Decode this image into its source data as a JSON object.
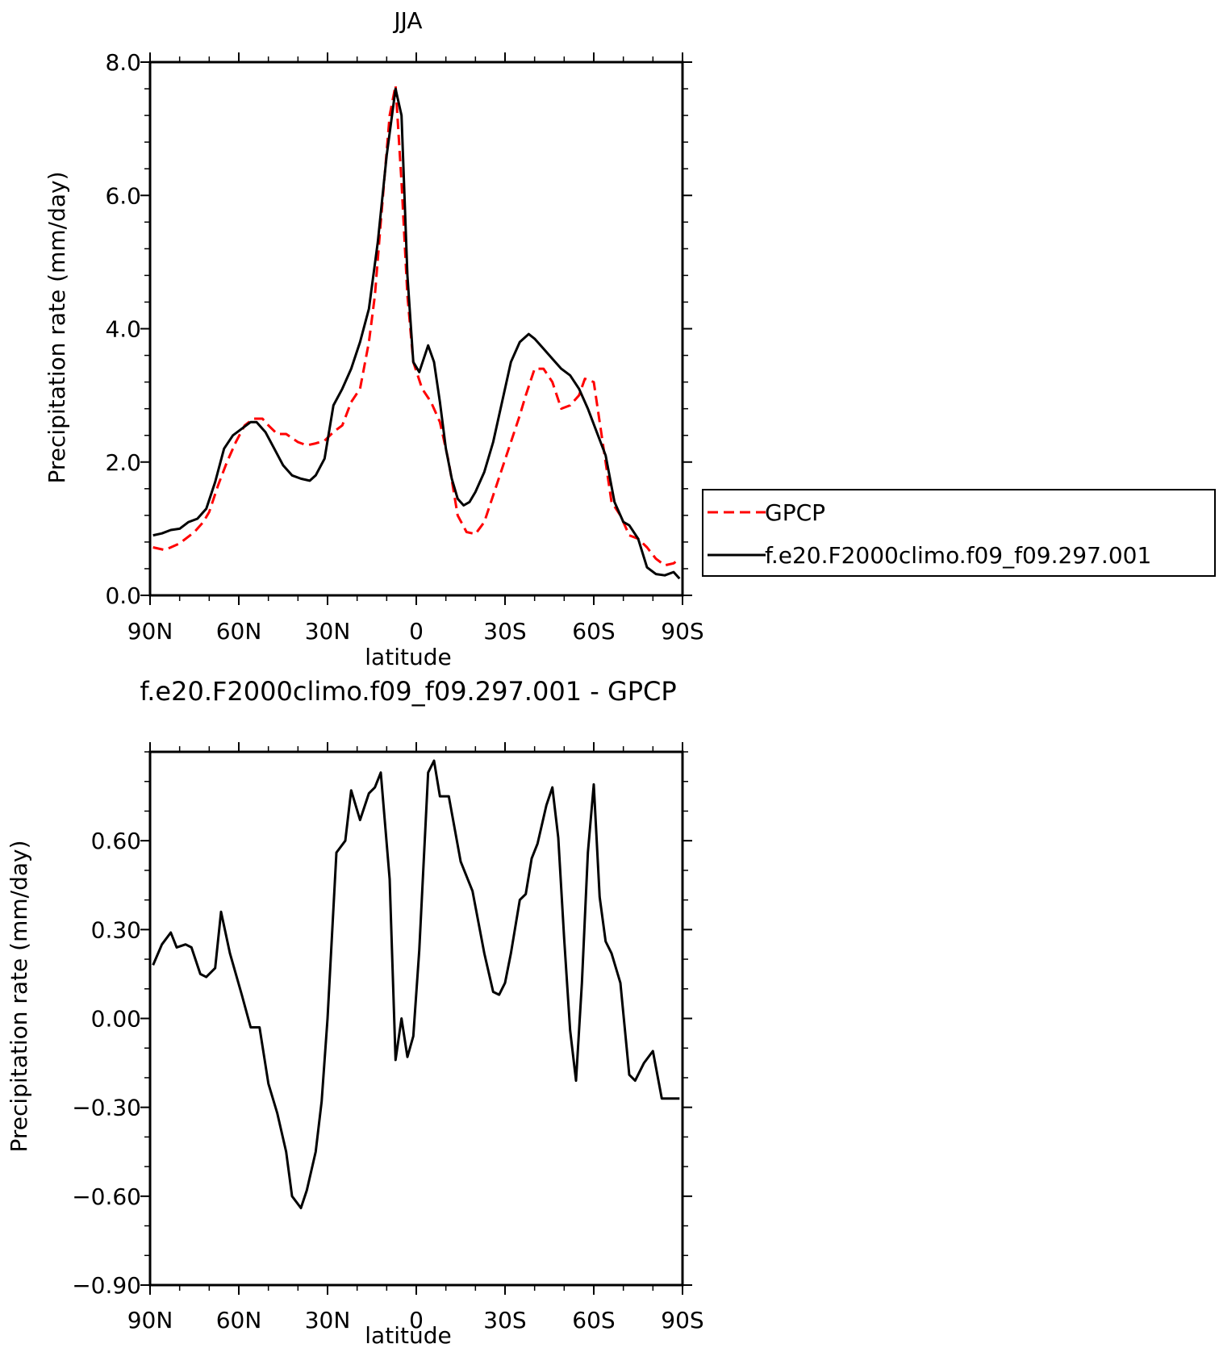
{
  "chart_data": [
    {
      "type": "line",
      "title": "JJA",
      "xlabel": "latitude",
      "ylabel": "Precipitation rate (mm/day)",
      "xlim": [
        90,
        -90
      ],
      "ylim": [
        0,
        8
      ],
      "x_ticks": [
        90,
        60,
        30,
        0,
        -30,
        -60,
        -90
      ],
      "x_tick_labels": [
        "90N",
        "60N",
        "30N",
        "0",
        "30S",
        "60S",
        "90S"
      ],
      "y_ticks": [
        0,
        2,
        4,
        6,
        8
      ],
      "y_tick_labels": [
        "0.0",
        "2.0",
        "4.0",
        "6.0",
        "8.0"
      ],
      "legend_position": "right",
      "series": [
        {
          "name": "GPCP",
          "color": "#ff0000",
          "dash": "dashed",
          "x": [
            89,
            85,
            80,
            75,
            72,
            70,
            67,
            64,
            61,
            58,
            55,
            52,
            50,
            47,
            44,
            40,
            37,
            34,
            31,
            28,
            25,
            22,
            19,
            16,
            14,
            12,
            9,
            7,
            5,
            3,
            1,
            -2,
            -5,
            -8,
            -11,
            -14,
            -17,
            -20,
            -23,
            -26,
            -29,
            -32,
            -35,
            -37,
            -40,
            -43,
            -46,
            -49,
            -52,
            -55,
            -57,
            -60,
            -63,
            -66,
            -69,
            -72,
            -75,
            -78,
            -81,
            -84,
            -87,
            -89
          ],
          "y": [
            0.72,
            0.68,
            0.78,
            0.95,
            1.1,
            1.25,
            1.65,
            2.0,
            2.3,
            2.55,
            2.65,
            2.65,
            2.55,
            2.42,
            2.42,
            2.3,
            2.25,
            2.28,
            2.32,
            2.45,
            2.55,
            2.9,
            3.1,
            3.8,
            4.5,
            5.6,
            7.2,
            7.65,
            6.2,
            4.5,
            3.5,
            3.1,
            2.9,
            2.6,
            2.0,
            1.2,
            0.95,
            0.92,
            1.1,
            1.5,
            1.9,
            2.3,
            2.7,
            3.0,
            3.4,
            3.4,
            3.2,
            2.8,
            2.85,
            3.0,
            3.25,
            3.2,
            2.3,
            1.4,
            1.2,
            0.9,
            0.85,
            0.72,
            0.55,
            0.45,
            0.48,
            0.55
          ]
        },
        {
          "name": "f.e20.F2000climo.f09_f09.297.001",
          "color": "#000000",
          "dash": "solid",
          "x": [
            89,
            86,
            83,
            80,
            77,
            74,
            71,
            68,
            65,
            62,
            59,
            56,
            54,
            51,
            48,
            45,
            42,
            39,
            36,
            34,
            31,
            28,
            25,
            22,
            19,
            16,
            13,
            10,
            7,
            5,
            3,
            1,
            -1,
            -4,
            -6,
            -8,
            -10,
            -12,
            -14,
            -16,
            -18,
            -20,
            -23,
            -26,
            -29,
            -32,
            -35,
            -38,
            -40,
            -43,
            -46,
            -49,
            -52,
            -55,
            -58,
            -61,
            -64,
            -67,
            -70,
            -72,
            -75,
            -78,
            -81,
            -84,
            -87,
            -89
          ],
          "y": [
            0.9,
            0.93,
            0.98,
            1.0,
            1.1,
            1.15,
            1.3,
            1.7,
            2.2,
            2.4,
            2.5,
            2.6,
            2.6,
            2.45,
            2.2,
            1.95,
            1.8,
            1.75,
            1.72,
            1.8,
            2.05,
            2.85,
            3.1,
            3.4,
            3.8,
            4.3,
            5.3,
            6.6,
            7.6,
            7.2,
            4.8,
            3.5,
            3.35,
            3.75,
            3.5,
            2.9,
            2.2,
            1.75,
            1.45,
            1.35,
            1.4,
            1.55,
            1.85,
            2.3,
            2.9,
            3.5,
            3.8,
            3.92,
            3.85,
            3.7,
            3.55,
            3.4,
            3.3,
            3.1,
            2.8,
            2.45,
            2.1,
            1.4,
            1.1,
            1.05,
            0.85,
            0.42,
            0.32,
            0.3,
            0.35,
            0.25
          ]
        }
      ]
    },
    {
      "type": "line",
      "title": "f.e20.F2000climo.f09_f09.297.001 - GPCP",
      "xlabel": "latitude",
      "ylabel": "Precipitation rate (mm/day)",
      "xlim": [
        90,
        -90
      ],
      "ylim": [
        -0.9,
        0.9
      ],
      "x_ticks": [
        90,
        60,
        30,
        0,
        -30,
        -60,
        -90
      ],
      "x_tick_labels": [
        "90N",
        "60N",
        "30N",
        "0",
        "30S",
        "60S",
        "90S"
      ],
      "y_ticks": [
        -0.9,
        -0.6,
        -0.3,
        0.0,
        0.3,
        0.6
      ],
      "y_tick_labels": [
        "-0.90",
        "-0.60",
        "-0.30",
        "0.00",
        "0.30",
        "0.60"
      ],
      "series": [
        {
          "color": "#000000",
          "dash": "solid",
          "x": [
            89,
            86,
            83,
            81,
            78,
            76,
            73,
            71,
            68,
            66,
            63,
            59,
            56,
            53,
            50,
            47,
            44,
            42,
            39,
            37,
            34,
            32,
            30,
            27,
            24,
            22,
            19,
            16,
            14,
            12,
            9,
            7,
            5,
            3,
            1,
            -1,
            -4,
            -6,
            -8,
            -11,
            -15,
            -19,
            -23,
            -26,
            -28,
            -30,
            -32,
            -35,
            -37,
            -39,
            -41,
            -44,
            -46,
            -48,
            -50,
            -52,
            -54,
            -56,
            -58,
            -60,
            -62,
            -64,
            -66,
            -69,
            -72,
            -74,
            -77,
            -80,
            -83,
            -86,
            -89
          ],
          "y": [
            0.18,
            0.25,
            0.29,
            0.24,
            0.25,
            0.24,
            0.15,
            0.14,
            0.17,
            0.36,
            0.22,
            0.08,
            -0.03,
            -0.03,
            -0.22,
            -0.32,
            -0.45,
            -0.6,
            -0.64,
            -0.58,
            -0.45,
            -0.28,
            0.0,
            0.56,
            0.6,
            0.77,
            0.67,
            0.76,
            0.78,
            0.83,
            0.47,
            -0.14,
            0.0,
            -0.13,
            -0.06,
            0.23,
            0.83,
            0.87,
            0.75,
            0.75,
            0.53,
            0.43,
            0.22,
            0.09,
            0.08,
            0.12,
            0.22,
            0.4,
            0.42,
            0.54,
            0.59,
            0.72,
            0.78,
            0.61,
            0.27,
            -0.04,
            -0.21,
            0.12,
            0.56,
            0.79,
            0.41,
            0.26,
            0.22,
            0.12,
            -0.19,
            -0.21,
            -0.15,
            -0.11,
            -0.27,
            -0.27,
            -0.27
          ]
        }
      ]
    }
  ]
}
